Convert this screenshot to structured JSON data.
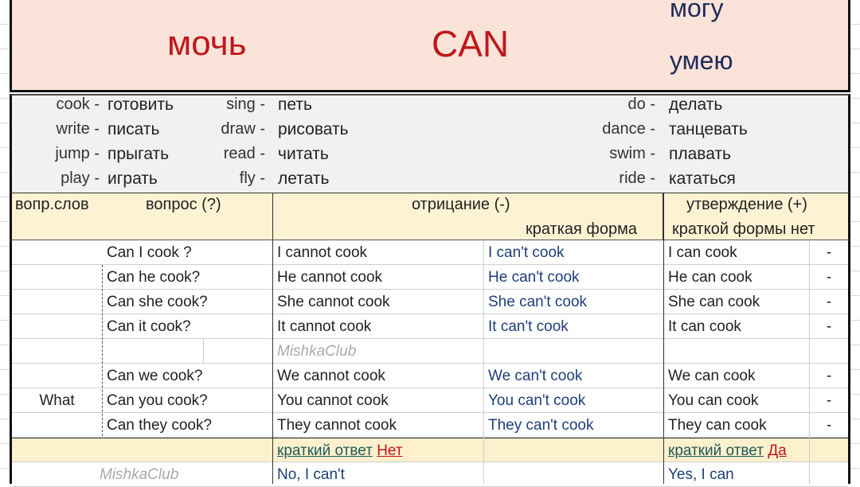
{
  "header": {
    "title_ru": "мочь",
    "title_en": "CAN",
    "meaning1": "могу",
    "meaning2": "умею",
    "colors": {
      "title": "#c0171b",
      "meaning": "#1f2a5a",
      "background": "#fbe3d9"
    }
  },
  "vocab": [
    {
      "en": "cook -",
      "ru": "готовить"
    },
    {
      "en": "write -",
      "ru": "писать"
    },
    {
      "en": "jump -",
      "ru": "прыгать"
    },
    {
      "en": "play -",
      "ru": "играть"
    },
    {
      "en": "sing -",
      "ru": "петь"
    },
    {
      "en": "draw -",
      "ru": "рисовать"
    },
    {
      "en": "read -",
      "ru": "читать"
    },
    {
      "en": "fly -",
      "ru": "летать"
    },
    {
      "en": "do -",
      "ru": "делать"
    },
    {
      "en": "dance -",
      "ru": "танцевать"
    },
    {
      "en": "swim -",
      "ru": "плавать"
    },
    {
      "en": "ride -",
      "ru": "кататься"
    }
  ],
  "table_header": {
    "qword": "вопр.слов",
    "question": "вопрос (?)",
    "negation": "отрицание (-)",
    "short_form": "краткая форма",
    "affirmation": "утверждение (+)",
    "no_short_form": "краткой формы нет"
  },
  "rows": [
    {
      "q": "Can I cook ?",
      "neg": "I cannot cook",
      "short": "I can't cook",
      "aff": "I can cook",
      "dash": "-"
    },
    {
      "q": "Can he cook?",
      "neg": "He cannot cook",
      "short": "He can't cook",
      "aff": "He can cook",
      "dash": "-"
    },
    {
      "q": "Can she cook?",
      "neg": "She cannot cook",
      "short": "She can't cook",
      "aff": "She can cook",
      "dash": "-"
    },
    {
      "q": "Can it cook?",
      "neg": "It cannot cook",
      "short": "It can't cook",
      "aff": "It can cook",
      "dash": "-"
    },
    {
      "q": "Can we cook?",
      "neg": "We cannot cook",
      "short": "We can't cook",
      "aff": "We can cook",
      "dash": "-"
    },
    {
      "q": "Can you cook?",
      "neg": "You cannot cook",
      "short": "You can't cook",
      "aff": "You can cook",
      "dash": "-"
    },
    {
      "q": "Can they cook?",
      "neg": "They cannot cook",
      "short": "They can't cook",
      "aff": "They can cook",
      "dash": "-"
    }
  ],
  "qword_value": "What",
  "watermark": "MishkaClub",
  "short_answer": {
    "label": "краткий ответ",
    "no": "Нет",
    "yes": "Да",
    "no_answer": "No, I can't",
    "yes_answer": "Yes, I  can"
  }
}
